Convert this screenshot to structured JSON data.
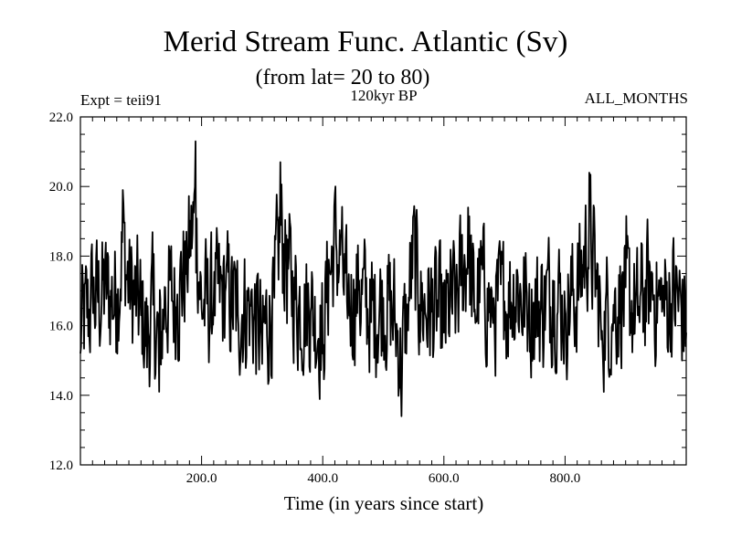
{
  "chart_data": {
    "type": "line",
    "title": "Merid Stream Func. Atlantic (Sv)",
    "subtitle": "(from lat= 20 to 80)",
    "annotation_left": "Expt = teii91",
    "annotation_center": "120kyr BP",
    "annotation_right": "ALL_MONTHS",
    "xlabel": "Time (in years since start)",
    "ylabel": "",
    "xlim": [
      0,
      1000
    ],
    "ylim": [
      12.0,
      22.0
    ],
    "x_ticks": [
      200,
      400,
      600,
      800
    ],
    "x_tick_labels": [
      "200.0",
      "400.0",
      "600.0",
      "800.0"
    ],
    "y_ticks": [
      12,
      14,
      16,
      18,
      20,
      22
    ],
    "y_tick_labels": [
      "12.0",
      "14.0",
      "16.0",
      "18.0",
      "20.0",
      "22.0"
    ],
    "grid": false,
    "legend": "none",
    "line_color": "#000000",
    "series": [
      {
        "x": [
          0,
          20,
          40,
          60,
          70,
          80,
          100,
          110,
          120,
          130,
          140,
          160,
          175,
          190,
          200,
          220,
          240,
          260,
          280,
          300,
          320,
          330,
          340,
          360,
          380,
          400,
          410,
          420,
          430,
          440,
          460,
          480,
          500,
          520,
          530,
          540,
          550,
          560,
          580,
          600,
          620,
          640,
          650,
          660,
          680,
          700,
          720,
          740,
          760,
          780,
          800,
          820,
          840,
          860,
          880,
          900,
          920,
          940,
          960,
          980,
          1000
        ],
        "values": [
          15.2,
          16.8,
          17.2,
          16.9,
          19.9,
          17.4,
          16.3,
          14.8,
          16.6,
          14.1,
          17.1,
          16.9,
          18.7,
          21.3,
          16.5,
          16.7,
          17.1,
          16.3,
          16.6,
          14.9,
          16.8,
          20.7,
          18.6,
          16.5,
          16.4,
          15.2,
          17.9,
          19.8,
          18.6,
          16.7,
          17.3,
          16.1,
          16.8,
          15.9,
          13.4,
          16.6,
          19.2,
          16.6,
          16.4,
          15.8,
          16.9,
          19.4,
          16.4,
          17.8,
          16.3,
          16.7,
          17.6,
          16.2,
          16.5,
          17.3,
          16.5,
          17.2,
          20.4,
          15.6,
          16.6,
          17.1,
          16.3,
          17.7,
          16.4,
          17.2,
          15.8
        ]
      }
    ]
  }
}
